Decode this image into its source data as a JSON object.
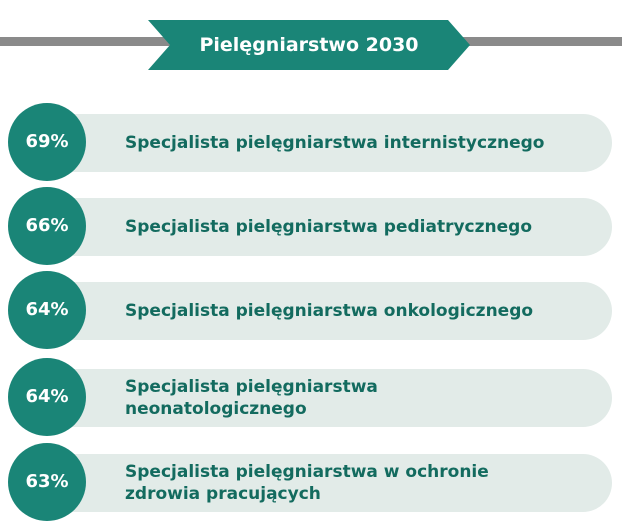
{
  "header": {
    "title": "Pielęgniarstwo 2030"
  },
  "items": [
    {
      "value": "69%",
      "lines": [
        "Specjalista pielęgniarstwa internistycznego"
      ]
    },
    {
      "value": "66%",
      "lines": [
        "Specjalista pielęgniarstwa pediatrycznego"
      ]
    },
    {
      "value": "64%",
      "lines": [
        "Specjalista pielęgniarstwa onkologicznego"
      ]
    },
    {
      "value": "64%",
      "lines": [
        "Specjalista pielęgniarstwa",
        "neonatologicznego"
      ]
    },
    {
      "value": "63%",
      "lines": [
        "Specjalista pielęgniarstwa w ochronie",
        "zdrowia pracujących"
      ]
    }
  ]
}
